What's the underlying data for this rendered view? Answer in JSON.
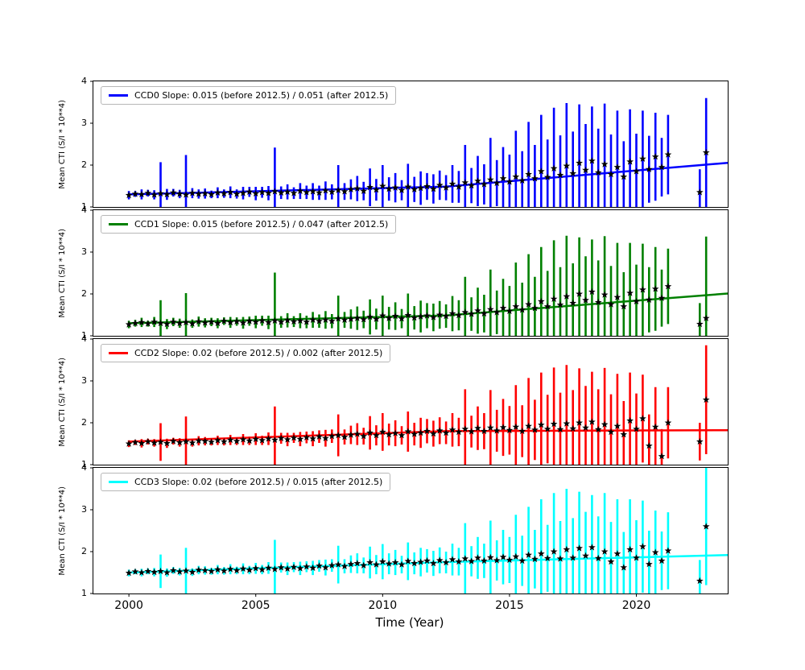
{
  "figure": {
    "background": "#ffffff"
  },
  "axes": {
    "xlabel": "Time (Year)",
    "ylabel": "Mean CTI (S/I * 10**4)",
    "x_ticks": [
      2000,
      2005,
      2010,
      2015,
      2020
    ],
    "y_ticks": [
      1,
      2,
      3,
      4
    ],
    "xlim": [
      1998.6,
      2023.6
    ],
    "ylim": [
      1,
      4
    ],
    "grid": false,
    "legend_position": "upper-left"
  },
  "chart_data": [
    {
      "type": "scatter",
      "name": "CCD0",
      "color": "#0000ff",
      "marker": "star",
      "marker_color": "#000000",
      "legend_label": "CCD0 Slope: 0.015 (before 2012.5) / 0.051 (after 2012.5)",
      "fit": {
        "y2000": 1.3,
        "slope_before": 0.015,
        "slope_after": 0.051,
        "break_x": 2012.5
      },
      "x_start": 2000.0,
      "x_step": 0.25,
      "y": [
        1.28,
        1.31,
        1.3,
        1.33,
        1.29,
        1.32,
        1.3,
        1.34,
        1.31,
        1.29,
        1.33,
        1.31,
        1.32,
        1.3,
        1.34,
        1.32,
        1.35,
        1.31,
        1.33,
        1.36,
        1.32,
        1.35,
        1.33,
        1.37,
        1.34,
        1.36,
        1.33,
        1.38,
        1.35,
        1.37,
        1.34,
        1.39,
        1.36,
        1.4,
        1.37,
        1.42,
        1.44,
        1.38,
        1.47,
        1.41,
        1.5,
        1.43,
        1.46,
        1.4,
        1.48,
        1.42,
        1.45,
        1.49,
        1.43,
        1.52,
        1.46,
        1.55,
        1.48,
        1.58,
        1.51,
        1.62,
        1.54,
        1.65,
        1.57,
        1.68,
        1.6,
        1.72,
        1.63,
        1.78,
        1.68,
        1.85,
        1.71,
        1.92,
        1.76,
        1.98,
        1.8,
        2.05,
        1.88,
        2.1,
        1.82,
        2.02,
        1.78,
        1.95,
        1.72,
        2.08,
        1.85,
        2.15,
        1.9,
        2.2,
        1.95,
        2.25,
        null,
        null,
        null,
        null,
        1.35,
        2.3
      ],
      "yerr": [
        0.1,
        0.07,
        0.12,
        0.08,
        0.11,
        0.75,
        0.13,
        0.09,
        0.1,
        0.95,
        0.12,
        0.11,
        0.12,
        0.09,
        0.13,
        0.1,
        0.14,
        0.11,
        0.15,
        0.12,
        0.16,
        0.13,
        0.17,
        1.05,
        0.15,
        0.18,
        0.14,
        0.19,
        0.16,
        0.2,
        0.17,
        0.22,
        0.18,
        0.6,
        0.2,
        0.24,
        0.3,
        0.22,
        0.45,
        0.26,
        0.5,
        0.28,
        0.35,
        0.24,
        0.55,
        0.3,
        0.4,
        0.32,
        0.35,
        0.35,
        0.3,
        0.45,
        0.38,
        0.9,
        0.42,
        0.6,
        0.48,
        1.0,
        0.55,
        0.75,
        0.65,
        1.1,
        0.7,
        1.25,
        0.8,
        1.35,
        0.9,
        1.45,
        0.95,
        1.5,
        1.0,
        1.4,
        1.1,
        1.3,
        1.05,
        1.45,
        0.95,
        1.35,
        0.85,
        1.25,
        0.9,
        1.15,
        0.8,
        1.05,
        0.7,
        0.95,
        null,
        null,
        null,
        null,
        0.55,
        1.3
      ]
    },
    {
      "type": "scatter",
      "name": "CCD1",
      "color": "#008000",
      "marker": "star",
      "marker_color": "#000000",
      "legend_label": "CCD1 Slope: 0.015 (before 2012.5) / 0.047 (after 2012.5)",
      "fit": {
        "y2000": 1.3,
        "slope_before": 0.015,
        "slope_after": 0.047,
        "break_x": 2012.5
      },
      "x_start": 2000.0,
      "x_step": 0.25,
      "y": [
        1.27,
        1.3,
        1.32,
        1.29,
        1.33,
        1.3,
        1.28,
        1.33,
        1.3,
        1.32,
        1.29,
        1.34,
        1.31,
        1.33,
        1.3,
        1.35,
        1.32,
        1.34,
        1.31,
        1.35,
        1.33,
        1.36,
        1.32,
        1.36,
        1.33,
        1.37,
        1.34,
        1.36,
        1.33,
        1.38,
        1.35,
        1.38,
        1.35,
        1.41,
        1.38,
        1.4,
        1.42,
        1.39,
        1.45,
        1.4,
        1.48,
        1.42,
        1.47,
        1.41,
        1.49,
        1.43,
        1.46,
        1.48,
        1.44,
        1.5,
        1.47,
        1.53,
        1.49,
        1.56,
        1.52,
        1.6,
        1.53,
        1.63,
        1.56,
        1.66,
        1.59,
        1.7,
        1.62,
        1.75,
        1.66,
        1.82,
        1.7,
        1.88,
        1.74,
        1.94,
        1.78,
        2.0,
        1.85,
        2.05,
        1.8,
        1.98,
        1.75,
        1.92,
        1.7,
        2.02,
        1.82,
        2.1,
        1.86,
        2.12,
        1.9,
        2.18,
        null,
        null,
        null,
        null,
        1.28,
        1.42
      ],
      "yerr": [
        0.09,
        0.08,
        0.11,
        0.07,
        0.12,
        0.55,
        0.12,
        0.1,
        0.11,
        0.7,
        0.1,
        0.12,
        0.11,
        0.1,
        0.12,
        0.09,
        0.13,
        0.1,
        0.14,
        0.11,
        0.15,
        0.12,
        0.16,
        1.15,
        0.14,
        0.17,
        0.13,
        0.18,
        0.15,
        0.19,
        0.16,
        0.21,
        0.17,
        0.55,
        0.19,
        0.23,
        0.28,
        0.21,
        0.42,
        0.25,
        0.48,
        0.27,
        0.33,
        0.23,
        0.52,
        0.28,
        0.38,
        0.3,
        0.33,
        0.33,
        0.28,
        0.42,
        0.36,
        0.85,
        0.4,
        0.55,
        0.45,
        0.95,
        0.52,
        0.7,
        0.6,
        1.05,
        0.65,
        1.2,
        0.75,
        1.3,
        0.85,
        1.4,
        0.9,
        1.45,
        0.95,
        1.35,
        1.05,
        1.25,
        1.0,
        1.4,
        0.92,
        1.3,
        0.82,
        1.2,
        0.88,
        1.1,
        0.78,
        1.0,
        0.68,
        0.9,
        null,
        null,
        null,
        null,
        0.5,
        1.95
      ]
    },
    {
      "type": "scatter",
      "name": "CCD2",
      "color": "#ff0000",
      "marker": "star",
      "marker_color": "#000000",
      "legend_label": "CCD2 Slope: 0.02 (before 2012.5) / 0.002 (after 2012.5)",
      "fit": {
        "y2000": 1.55,
        "slope_before": 0.02,
        "slope_after": 0.002,
        "break_x": 2012.5
      },
      "x_start": 2000.0,
      "x_step": 0.25,
      "y": [
        1.5,
        1.53,
        1.51,
        1.55,
        1.52,
        1.54,
        1.51,
        1.56,
        1.53,
        1.55,
        1.52,
        1.57,
        1.56,
        1.54,
        1.58,
        1.55,
        1.59,
        1.56,
        1.6,
        1.57,
        1.61,
        1.58,
        1.62,
        1.59,
        1.63,
        1.6,
        1.64,
        1.61,
        1.65,
        1.62,
        1.67,
        1.63,
        1.68,
        1.7,
        1.66,
        1.71,
        1.73,
        1.68,
        1.76,
        1.7,
        1.78,
        1.72,
        1.75,
        1.7,
        1.79,
        1.73,
        1.76,
        1.8,
        1.74,
        1.81,
        1.76,
        1.83,
        1.78,
        1.85,
        1.79,
        1.87,
        1.8,
        1.88,
        1.81,
        1.89,
        1.82,
        1.9,
        1.8,
        1.92,
        1.83,
        1.95,
        1.85,
        1.97,
        1.84,
        1.98,
        1.86,
        2.0,
        1.88,
        2.02,
        1.84,
        1.96,
        1.78,
        1.92,
        1.72,
        2.05,
        1.85,
        2.1,
        1.45,
        1.9,
        1.2,
        2.0,
        null,
        null,
        null,
        null,
        1.55,
        2.55
      ],
      "yerr": [
        0.08,
        0.06,
        0.1,
        0.07,
        0.09,
        0.45,
        0.11,
        0.08,
        0.1,
        0.6,
        0.09,
        0.11,
        0.1,
        0.08,
        0.11,
        0.09,
        0.12,
        0.09,
        0.13,
        0.1,
        0.14,
        0.11,
        0.15,
        0.8,
        0.13,
        0.16,
        0.12,
        0.17,
        0.14,
        0.18,
        0.15,
        0.2,
        0.16,
        0.5,
        0.18,
        0.22,
        0.26,
        0.2,
        0.4,
        0.24,
        0.45,
        0.26,
        0.31,
        0.22,
        0.48,
        0.27,
        0.36,
        0.29,
        0.31,
        0.32,
        0.27,
        0.4,
        0.34,
        0.95,
        0.38,
        0.52,
        0.43,
        0.9,
        0.5,
        0.68,
        0.58,
        1.0,
        0.62,
        1.15,
        0.72,
        1.25,
        0.82,
        1.35,
        0.88,
        1.4,
        0.92,
        1.3,
        1.0,
        1.2,
        0.96,
        1.35,
        0.9,
        1.25,
        0.8,
        1.15,
        0.85,
        1.05,
        0.75,
        0.95,
        0.65,
        0.85,
        null,
        null,
        null,
        null,
        0.45,
        1.3
      ]
    },
    {
      "type": "scatter",
      "name": "CCD3",
      "color": "#00ffff",
      "marker": "star",
      "marker_color": "#000000",
      "legend_label": "CCD3 Slope: 0.02 (before 2012.5) / 0.015 (after 2012.5)",
      "fit": {
        "y2000": 1.5,
        "slope_before": 0.02,
        "slope_after": 0.015,
        "break_x": 2012.5
      },
      "x_start": 2000.0,
      "x_step": 0.25,
      "y": [
        1.49,
        1.52,
        1.5,
        1.53,
        1.51,
        1.53,
        1.5,
        1.55,
        1.52,
        1.54,
        1.51,
        1.56,
        1.55,
        1.53,
        1.57,
        1.54,
        1.58,
        1.55,
        1.59,
        1.56,
        1.6,
        1.57,
        1.61,
        1.58,
        1.62,
        1.59,
        1.63,
        1.6,
        1.64,
        1.61,
        1.66,
        1.62,
        1.67,
        1.69,
        1.65,
        1.7,
        1.72,
        1.67,
        1.74,
        1.69,
        1.76,
        1.71,
        1.74,
        1.69,
        1.77,
        1.72,
        1.75,
        1.78,
        1.72,
        1.79,
        1.74,
        1.81,
        1.76,
        1.83,
        1.77,
        1.85,
        1.78,
        1.86,
        1.79,
        1.87,
        1.8,
        1.88,
        1.78,
        1.92,
        1.82,
        1.95,
        1.84,
        2.0,
        1.83,
        2.05,
        1.85,
        2.08,
        1.9,
        2.1,
        1.84,
        2.0,
        1.76,
        1.95,
        1.62,
        2.05,
        1.85,
        2.12,
        1.7,
        1.98,
        1.78,
        2.02,
        null,
        null,
        null,
        null,
        1.3,
        2.6
      ],
      "yerr": [
        0.08,
        0.06,
        0.09,
        0.07,
        0.1,
        0.4,
        0.1,
        0.08,
        0.09,
        0.55,
        0.09,
        0.1,
        0.1,
        0.08,
        0.11,
        0.09,
        0.12,
        0.09,
        0.13,
        0.1,
        0.13,
        0.11,
        0.14,
        0.7,
        0.12,
        0.15,
        0.12,
        0.16,
        0.13,
        0.17,
        0.14,
        0.19,
        0.15,
        0.45,
        0.17,
        0.21,
        0.24,
        0.19,
        0.38,
        0.23,
        0.42,
        0.25,
        0.3,
        0.21,
        0.45,
        0.26,
        0.34,
        0.28,
        0.3,
        0.31,
        0.26,
        0.38,
        0.33,
        0.85,
        0.36,
        0.5,
        0.41,
        0.88,
        0.48,
        0.65,
        0.55,
        1.0,
        0.6,
        1.15,
        0.7,
        1.3,
        0.8,
        1.4,
        0.9,
        1.45,
        0.95,
        1.35,
        1.05,
        1.25,
        1.0,
        1.4,
        0.95,
        1.3,
        0.85,
        1.2,
        0.9,
        1.1,
        0.8,
        1.0,
        0.7,
        0.92,
        null,
        null,
        null,
        null,
        0.5,
        1.4
      ]
    }
  ]
}
